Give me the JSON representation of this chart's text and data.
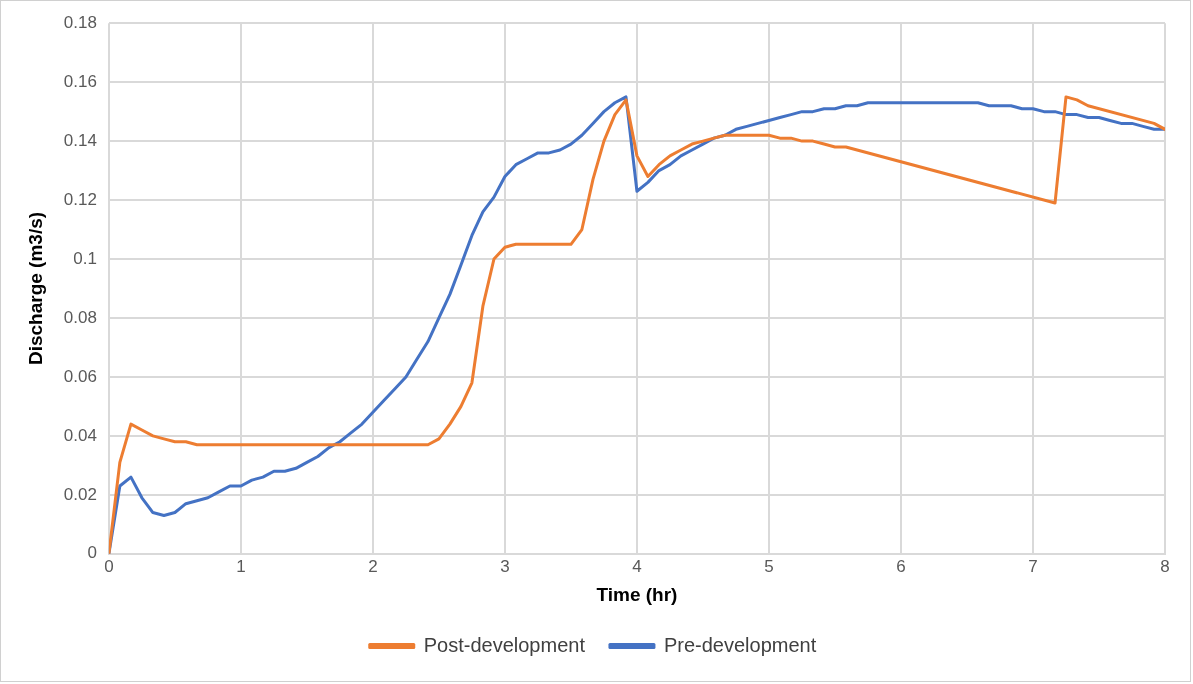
{
  "chart_data": {
    "type": "line",
    "xlabel": "Time (hr)",
    "ylabel": "Discharge (m3/s)",
    "xlim": [
      0,
      8
    ],
    "xticks": [
      0,
      1,
      2,
      3,
      4,
      5,
      6,
      7,
      8
    ],
    "ylim": [
      0,
      0.18
    ],
    "yticks": [
      0,
      0.02,
      0.04,
      0.06,
      0.08,
      0.1,
      0.12,
      0.14,
      0.16,
      0.18
    ],
    "grid": true,
    "legend": "bottom",
    "marker": "none",
    "line_style": "solid",
    "series": [
      {
        "name": "Post-development",
        "color": "#ed7d31",
        "x": [
          0,
          0.083,
          0.167,
          0.25,
          0.333,
          0.417,
          0.5,
          0.583,
          0.667,
          2.417,
          2.5,
          2.583,
          2.667,
          2.75,
          2.833,
          2.917,
          3.0,
          3.083,
          3.5,
          3.583,
          3.667,
          3.75,
          3.833,
          3.917,
          4.0,
          4.083,
          4.167,
          4.25,
          4.333,
          4.417,
          4.5,
          4.583,
          4.667,
          5.0,
          5.083,
          5.167,
          5.25,
          5.333,
          5.417,
          5.5,
          5.583,
          7.167,
          7.25,
          7.333,
          7.417,
          7.917,
          8
        ],
        "values": [
          0,
          0.031,
          0.044,
          0.042,
          0.04,
          0.039,
          0.038,
          0.038,
          0.037,
          0.037,
          0.039,
          0.044,
          0.05,
          0.058,
          0.084,
          0.1,
          0.104,
          0.105,
          0.105,
          0.11,
          0.127,
          0.14,
          0.149,
          0.154,
          0.135,
          0.128,
          0.132,
          0.135,
          0.137,
          0.139,
          0.14,
          0.141,
          0.142,
          0.142,
          0.141,
          0.141,
          0.14,
          0.14,
          0.139,
          0.138,
          0.138,
          0.119,
          0.155,
          0.154,
          0.152,
          0.146,
          0.144
        ]
      },
      {
        "name": "Pre-development",
        "color": "#4472c4",
        "x": [
          0,
          0.083,
          0.167,
          0.25,
          0.333,
          0.417,
          0.5,
          0.583,
          0.667,
          0.75,
          0.833,
          0.917,
          1.0,
          1.083,
          1.167,
          1.25,
          1.333,
          1.417,
          1.5,
          1.583,
          1.667,
          1.75,
          1.833,
          1.917,
          2.0,
          2.083,
          2.167,
          2.25,
          2.333,
          2.417,
          2.5,
          2.583,
          2.667,
          2.75,
          2.833,
          2.917,
          3.0,
          3.083,
          3.167,
          3.25,
          3.333,
          3.417,
          3.5,
          3.583,
          3.667,
          3.75,
          3.833,
          3.917,
          4.0,
          4.083,
          4.167,
          4.25,
          4.333,
          4.417,
          4.5,
          4.583,
          4.667,
          4.75,
          4.833,
          4.917,
          5.0,
          5.083,
          5.167,
          5.25,
          5.333,
          5.417,
          5.5,
          5.583,
          5.667,
          5.75,
          6.583,
          6.667,
          6.833,
          6.917,
          7.0,
          7.083,
          7.167,
          7.25,
          7.333,
          7.417,
          7.5,
          7.583,
          7.667,
          7.75,
          7.833,
          7.917,
          8
        ],
        "values": [
          0,
          0.023,
          0.026,
          0.019,
          0.014,
          0.013,
          0.014,
          0.017,
          0.018,
          0.019,
          0.021,
          0.023,
          0.023,
          0.025,
          0.026,
          0.028,
          0.028,
          0.029,
          0.031,
          0.033,
          0.036,
          0.038,
          0.041,
          0.044,
          0.048,
          0.052,
          0.056,
          0.06,
          0.066,
          0.072,
          0.08,
          0.088,
          0.098,
          0.108,
          0.116,
          0.121,
          0.128,
          0.132,
          0.134,
          0.136,
          0.136,
          0.137,
          0.139,
          0.142,
          0.146,
          0.15,
          0.153,
          0.155,
          0.123,
          0.126,
          0.13,
          0.132,
          0.135,
          0.137,
          0.139,
          0.141,
          0.142,
          0.144,
          0.145,
          0.146,
          0.147,
          0.148,
          0.149,
          0.15,
          0.15,
          0.151,
          0.151,
          0.152,
          0.152,
          0.153,
          0.153,
          0.152,
          0.152,
          0.151,
          0.151,
          0.15,
          0.15,
          0.149,
          0.149,
          0.148,
          0.148,
          0.147,
          0.146,
          0.146,
          0.145,
          0.144,
          0.144
        ]
      }
    ]
  }
}
